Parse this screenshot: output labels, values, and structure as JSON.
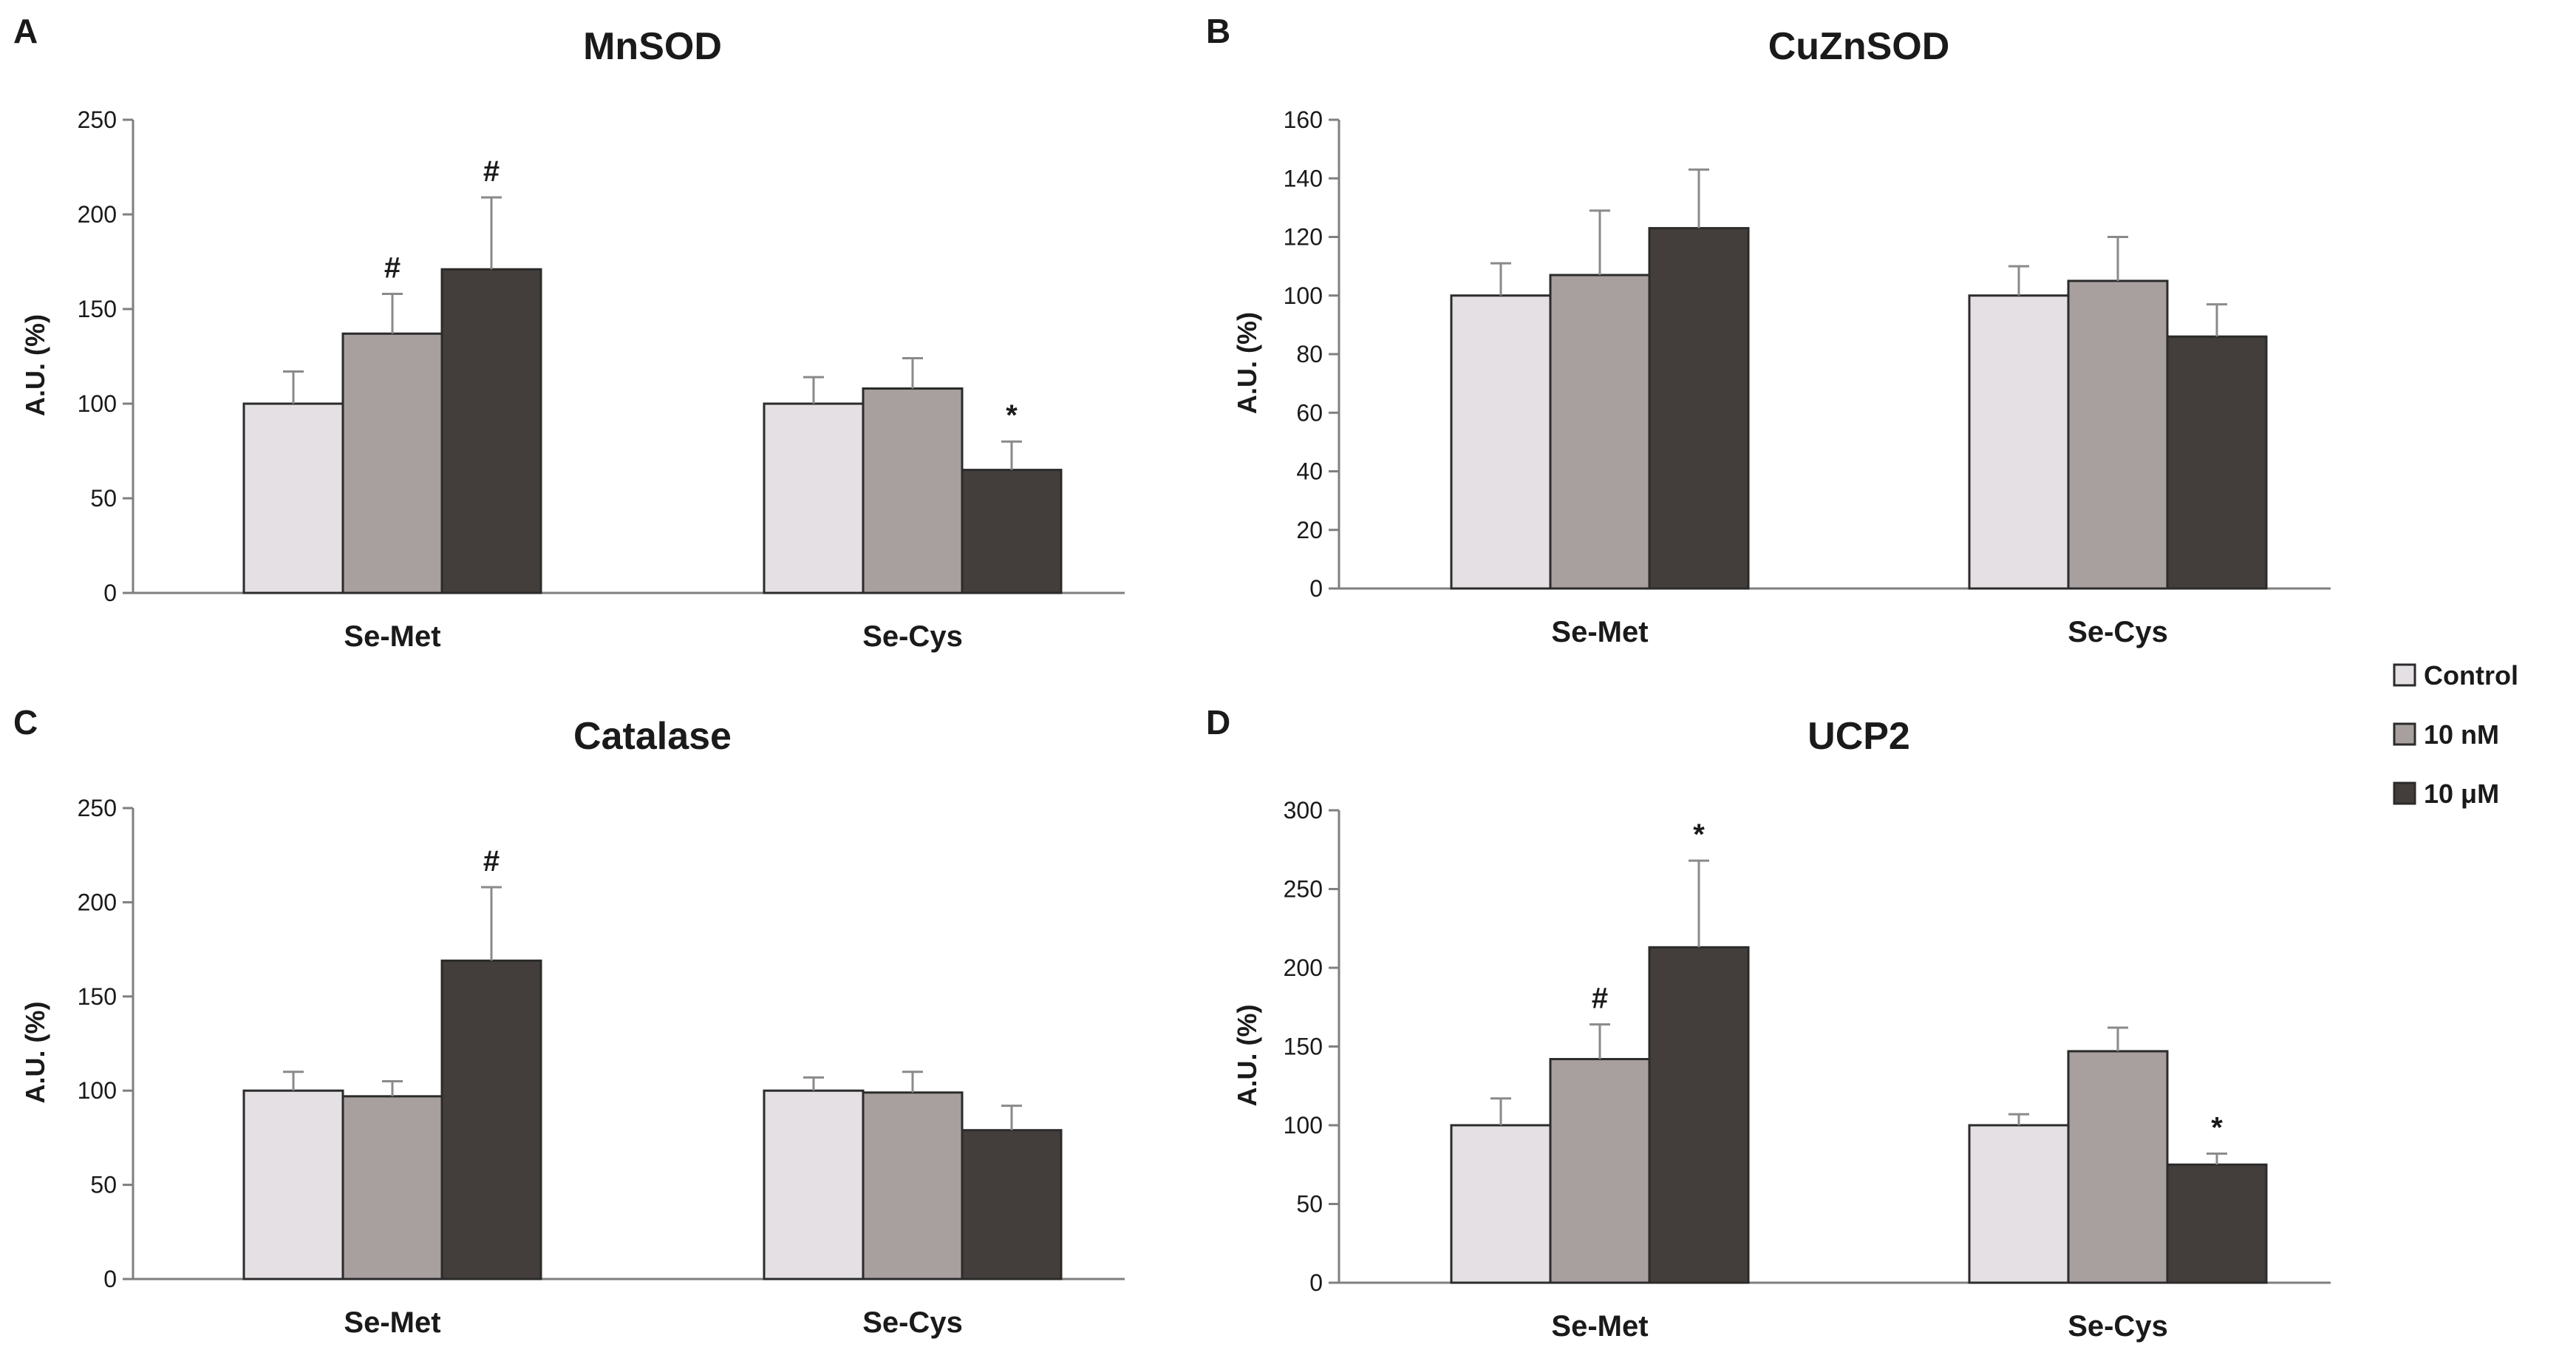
{
  "figure": {
    "legend": {
      "entries": [
        {
          "label": "Control",
          "color": "#e5e0e3"
        },
        {
          "label": "10 nM",
          "color": "#a7a09f"
        },
        {
          "label": "10 μM",
          "color": "#433e3b"
        }
      ]
    }
  },
  "chart_data": [
    {
      "panel": "A",
      "type": "bar",
      "title": "MnSOD",
      "ylabel": "A.U. (%)",
      "xlabel": "",
      "categories": [
        "Se-Met",
        "Se-Cys"
      ],
      "ylim": [
        0,
        250
      ],
      "yticks": [
        0,
        50,
        100,
        150,
        200,
        250
      ],
      "series": [
        {
          "name": "Control",
          "values": [
            100,
            100
          ],
          "errors": [
            17,
            14
          ],
          "marks": [
            "",
            ""
          ]
        },
        {
          "name": "10 nM",
          "values": [
            137,
            108
          ],
          "errors": [
            21,
            16
          ],
          "marks": [
            "#",
            ""
          ]
        },
        {
          "name": "10 μM",
          "values": [
            171,
            65
          ],
          "errors": [
            38,
            15
          ],
          "marks": [
            "#",
            "*"
          ]
        }
      ]
    },
    {
      "panel": "B",
      "type": "bar",
      "title": "CuZnSOD",
      "ylabel": "A.U. (%)",
      "xlabel": "",
      "categories": [
        "Se-Met",
        "Se-Cys"
      ],
      "ylim": [
        0,
        160
      ],
      "yticks": [
        0,
        20,
        40,
        60,
        80,
        100,
        120,
        140,
        160
      ],
      "series": [
        {
          "name": "Control",
          "values": [
            100,
            100
          ],
          "errors": [
            11,
            10
          ],
          "marks": [
            "",
            ""
          ]
        },
        {
          "name": "10 nM",
          "values": [
            107,
            105
          ],
          "errors": [
            22,
            15
          ],
          "marks": [
            "",
            ""
          ]
        },
        {
          "name": "10 μM",
          "values": [
            123,
            86
          ],
          "errors": [
            20,
            11
          ],
          "marks": [
            "",
            ""
          ]
        }
      ]
    },
    {
      "panel": "C",
      "type": "bar",
      "title": "Catalase",
      "ylabel": "A.U. (%)",
      "xlabel": "",
      "categories": [
        "Se-Met",
        "Se-Cys"
      ],
      "ylim": [
        0,
        250
      ],
      "yticks": [
        0,
        50,
        100,
        150,
        200,
        250
      ],
      "series": [
        {
          "name": "Control",
          "values": [
            100,
            100
          ],
          "errors": [
            10,
            7
          ],
          "marks": [
            "",
            ""
          ]
        },
        {
          "name": "10 nM",
          "values": [
            97,
            99
          ],
          "errors": [
            8,
            11
          ],
          "marks": [
            "",
            ""
          ]
        },
        {
          "name": "10 μM",
          "values": [
            169,
            79
          ],
          "errors": [
            39,
            13
          ],
          "marks": [
            "#",
            ""
          ]
        }
      ]
    },
    {
      "panel": "D",
      "type": "bar",
      "title": "UCP2",
      "ylabel": "A.U. (%)",
      "xlabel": "",
      "categories": [
        "Se-Met",
        "Se-Cys"
      ],
      "ylim": [
        0,
        300
      ],
      "yticks": [
        0,
        50,
        100,
        150,
        200,
        250,
        300
      ],
      "series": [
        {
          "name": "Control",
          "values": [
            100,
            100
          ],
          "errors": [
            17,
            7
          ],
          "marks": [
            "",
            ""
          ]
        },
        {
          "name": "10 nM",
          "values": [
            142,
            147
          ],
          "errors": [
            22,
            15
          ],
          "marks": [
            "#",
            ""
          ]
        },
        {
          "name": "10 μM",
          "values": [
            213,
            75
          ],
          "errors": [
            55,
            7
          ],
          "marks": [
            "*",
            "*"
          ]
        }
      ]
    }
  ]
}
